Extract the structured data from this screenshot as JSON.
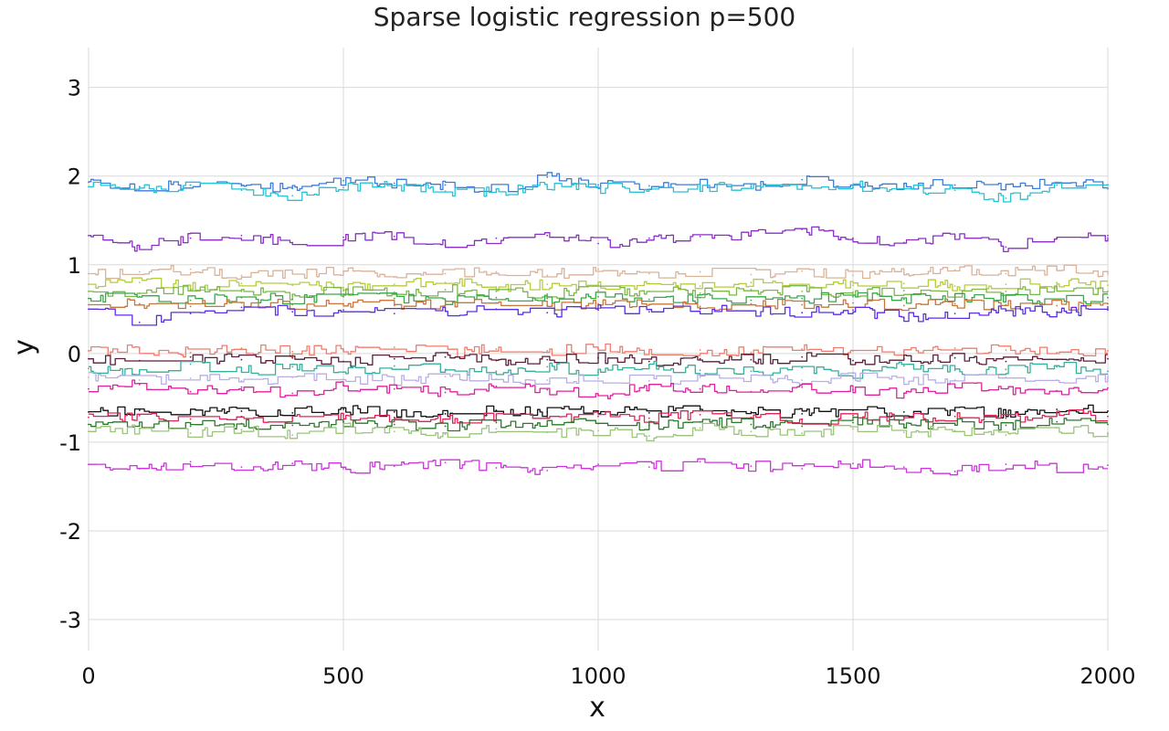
{
  "chart_data": {
    "type": "line",
    "title": "Sparse logistic regression p=500",
    "xlabel": "x",
    "ylabel": "y",
    "xlim": [
      0,
      2000
    ],
    "ylim": [
      -3.35,
      3.45
    ],
    "xticks": [
      0,
      500,
      1000,
      1500,
      2000
    ],
    "xtick_labels": [
      "0",
      "500",
      "1000",
      "1500",
      "2000"
    ],
    "yticks": [
      -3,
      -2,
      -1,
      0,
      1,
      2,
      3
    ],
    "ytick_labels": [
      "-3",
      "-2",
      "-1",
      "0",
      "1",
      "2",
      "3"
    ],
    "grid": true,
    "legend": "none",
    "series": [
      {
        "color": "#3b7dd8",
        "values": [
          1.93,
          1.88,
          1.9,
          1.89,
          1.86,
          1.95,
          1.92,
          1.9,
          1.85,
          1.99,
          1.9,
          1.89,
          1.91,
          1.88,
          1.96,
          1.87,
          1.91,
          1.9,
          1.88,
          1.93,
          1.9
        ]
      },
      {
        "color": "#27c2d6",
        "values": [
          1.88,
          1.86,
          1.9,
          1.84,
          1.78,
          1.87,
          1.89,
          1.83,
          1.82,
          1.88,
          1.86,
          1.85,
          1.87,
          1.9,
          1.85,
          1.89,
          1.86,
          1.84,
          1.75,
          1.9,
          1.87
        ]
      },
      {
        "color": "#8a2fc4",
        "values": [
          1.33,
          1.2,
          1.3,
          1.33,
          1.25,
          1.31,
          1.32,
          1.22,
          1.3,
          1.33,
          1.24,
          1.3,
          1.32,
          1.33,
          1.4,
          1.3,
          1.25,
          1.32,
          1.2,
          1.3,
          1.33
        ]
      },
      {
        "color": "#d9b29a",
        "values": [
          0.9,
          0.92,
          0.95,
          0.88,
          0.9,
          0.93,
          0.86,
          0.9,
          0.92,
          0.88,
          0.95,
          0.9,
          0.92,
          0.89,
          0.93,
          0.88,
          0.91,
          0.94,
          0.9,
          0.95,
          0.92
        ]
      },
      {
        "color": "#b5cc3e",
        "values": [
          0.78,
          0.8,
          0.76,
          0.79,
          0.77,
          0.74,
          0.78,
          0.8,
          0.75,
          0.78,
          0.77,
          0.79,
          0.76,
          0.8,
          0.78,
          0.77,
          0.79,
          0.76,
          0.78,
          0.8,
          0.77
        ]
      },
      {
        "color": "#7ab84a",
        "values": [
          0.7,
          0.68,
          0.72,
          0.7,
          0.66,
          0.71,
          0.69,
          0.72,
          0.7,
          0.67,
          0.71,
          0.7,
          0.68,
          0.72,
          0.7,
          0.69,
          0.71,
          0.66,
          0.7,
          0.72,
          0.7
        ]
      },
      {
        "color": "#3aa84a",
        "values": [
          0.62,
          0.64,
          0.6,
          0.63,
          0.61,
          0.64,
          0.62,
          0.6,
          0.63,
          0.62,
          0.64,
          0.61,
          0.63,
          0.6,
          0.62,
          0.64,
          0.61,
          0.63,
          0.62,
          0.6,
          0.63
        ]
      },
      {
        "color": "#c7773a",
        "values": [
          0.55,
          0.56,
          0.53,
          0.57,
          0.55,
          0.56,
          0.54,
          0.55,
          0.57,
          0.54,
          0.56,
          0.55,
          0.53,
          0.56,
          0.55,
          0.57,
          0.54,
          0.56,
          0.55,
          0.54,
          0.56
        ]
      },
      {
        "color": "#5a2ee6",
        "values": [
          0.5,
          0.35,
          0.45,
          0.52,
          0.47,
          0.49,
          0.45,
          0.48,
          0.5,
          0.46,
          0.49,
          0.47,
          0.5,
          0.48,
          0.46,
          0.49,
          0.4,
          0.45,
          0.48,
          0.47,
          0.49
        ]
      },
      {
        "color": "#ef7d6c",
        "values": [
          0.03,
          0.05,
          0.01,
          0.06,
          0.02,
          0.04,
          0.07,
          0.01,
          0.05,
          0.03,
          0.06,
          0.02,
          0.04,
          0.01,
          0.05,
          0.03,
          0.02,
          0.06,
          0.04,
          0.01,
          0.03
        ]
      },
      {
        "color": "#5a1f3a",
        "values": [
          -0.06,
          -0.08,
          -0.04,
          -0.07,
          -0.05,
          -0.09,
          -0.06,
          -0.04,
          -0.08,
          -0.07,
          -0.05,
          -0.09,
          -0.06,
          -0.07,
          -0.04,
          -0.08,
          -0.06,
          -0.05,
          -0.09,
          -0.07,
          -0.06
        ]
      },
      {
        "color": "#35b09a",
        "values": [
          -0.17,
          -0.2,
          -0.12,
          -0.2,
          -0.15,
          -0.21,
          -0.14,
          -0.18,
          -0.2,
          -0.15,
          -0.21,
          -0.13,
          -0.19,
          -0.2,
          -0.16,
          -0.22,
          -0.14,
          -0.19,
          -0.18,
          -0.15,
          -0.2
        ]
      },
      {
        "color": "#b8aee6",
        "values": [
          -0.27,
          -0.3,
          -0.28,
          -0.31,
          -0.27,
          -0.29,
          -0.3,
          -0.26,
          -0.29,
          -0.3,
          -0.28,
          -0.31,
          -0.27,
          -0.29,
          -0.3,
          -0.26,
          -0.29,
          -0.3,
          -0.27,
          -0.3,
          -0.28
        ]
      },
      {
        "color": "#e0219f",
        "values": [
          -0.4,
          -0.35,
          -0.43,
          -0.38,
          -0.45,
          -0.36,
          -0.4,
          -0.44,
          -0.37,
          -0.41,
          -0.47,
          -0.36,
          -0.4,
          -0.43,
          -0.38,
          -0.41,
          -0.45,
          -0.37,
          -0.4,
          -0.42,
          -0.39
        ]
      },
      {
        "color": "#111111",
        "values": [
          -0.66,
          -0.64,
          -0.68,
          -0.65,
          -0.67,
          -0.63,
          -0.66,
          -0.68,
          -0.64,
          -0.66,
          -0.65,
          -0.67,
          -0.63,
          -0.66,
          -0.68,
          -0.64,
          -0.66,
          -0.65,
          -0.67,
          -0.63,
          -0.65
        ]
      },
      {
        "color": "#e0245a",
        "values": [
          -0.72,
          -0.7,
          -0.74,
          -0.71,
          -0.73,
          -0.69,
          -0.72,
          -0.74,
          -0.7,
          -0.72,
          -0.71,
          -0.73,
          -0.69,
          -0.72,
          -0.74,
          -0.7,
          -0.72,
          -0.71,
          -0.73,
          -0.69,
          -0.71
        ]
      },
      {
        "color": "#2a7a2a",
        "values": [
          -0.8,
          -0.78,
          -0.82,
          -0.79,
          -0.81,
          -0.77,
          -0.8,
          -0.82,
          -0.78,
          -0.8,
          -0.79,
          -0.81,
          -0.77,
          -0.8,
          -0.82,
          -0.78,
          -0.8,
          -0.79,
          -0.81,
          -0.77,
          -0.8
        ]
      },
      {
        "color": "#9bc47a",
        "values": [
          -0.88,
          -0.85,
          -0.9,
          -0.86,
          -0.92,
          -0.84,
          -0.88,
          -0.91,
          -0.85,
          -0.89,
          -0.87,
          -0.93,
          -0.84,
          -0.88,
          -0.9,
          -0.85,
          -0.89,
          -0.87,
          -0.92,
          -0.84,
          -0.9
        ]
      },
      {
        "color": "#cc33dd",
        "values": [
          -1.25,
          -1.3,
          -1.22,
          -1.28,
          -1.24,
          -1.3,
          -1.27,
          -1.23,
          -1.29,
          -1.32,
          -1.25,
          -1.28,
          -1.22,
          -1.27,
          -1.3,
          -1.24,
          -1.28,
          -1.33,
          -1.25,
          -1.29,
          -1.26
        ]
      }
    ]
  }
}
